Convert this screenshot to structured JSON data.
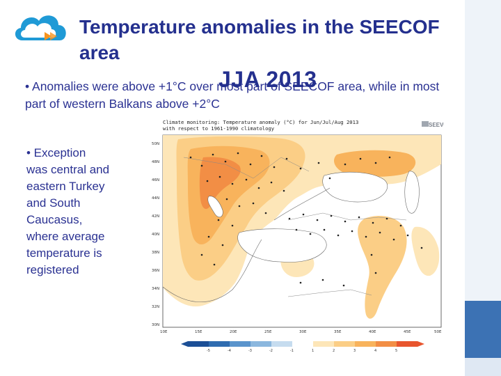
{
  "header": {
    "title": "Temperature anomalies in the SEECOF area",
    "subtitle": "JJA 2013"
  },
  "bullets": {
    "first": "• Anomalies were above +1°C over most part of SEECOF area, while in most part of western Balkans above +2°C",
    "second": "• Exception was central and eastern Turkey and South Caucasus, where average temperature is registered"
  },
  "map": {
    "title_line1": "Climate monitoring: Temperature anomaly (°C) for Jun/Jul/Aug 2013",
    "title_line2": "with respect to 1961-1990 climatology",
    "logo_text": "SEEVCCC",
    "lat_labels": [
      "50N",
      "48N",
      "46N",
      "44N",
      "42N",
      "40N",
      "38N",
      "36N",
      "34N",
      "32N",
      "30N"
    ],
    "lon_labels": [
      "10E",
      "15E",
      "20E",
      "25E",
      "30E",
      "35E",
      "40E",
      "45E",
      "50E"
    ],
    "colorbar_labels": [
      "-5",
      "-4",
      "-3",
      "-2",
      "-1",
      "1",
      "2",
      "3",
      "4",
      "5"
    ],
    "colors": {
      "pale": "#fde6b8",
      "light": "#fbce86",
      "mid": "#f8b35c",
      "strong": "#f28e45",
      "blue": "#2c6fb5",
      "frame": "#3c72b4"
    }
  }
}
